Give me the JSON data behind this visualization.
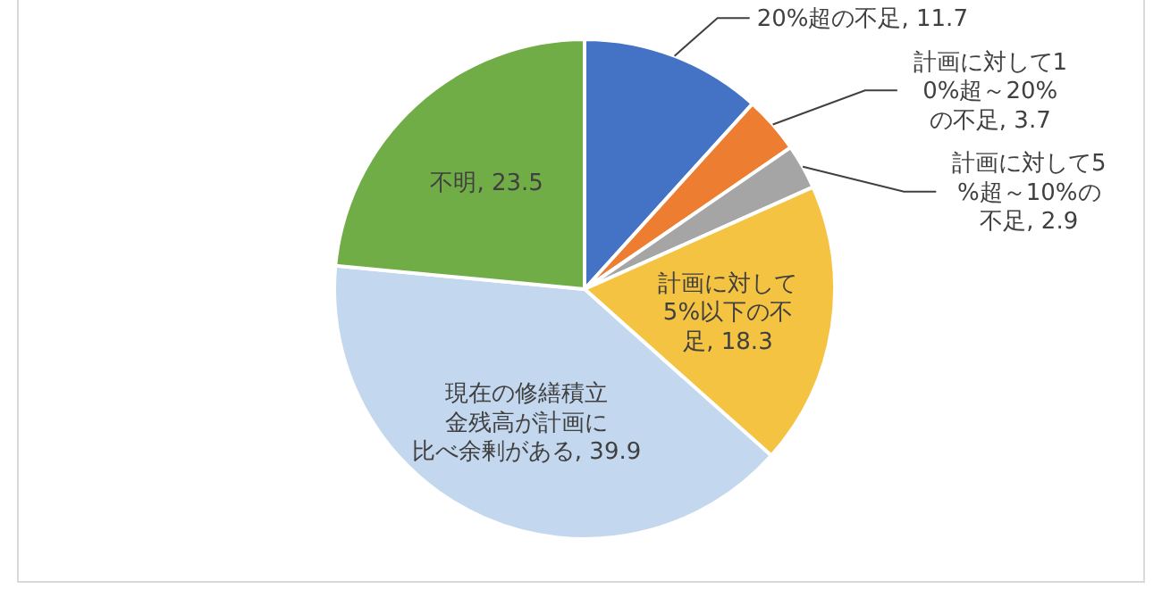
{
  "chart_data": {
    "type": "pie",
    "categories": [
      "20%超の不足",
      "計画に対して10%超～20%の不足",
      "計画に対して5%超～10%の不足",
      "計画に対して5%以下の不足",
      "現在の修繕積立金残高が計画に比べ余剰がある",
      "不明"
    ],
    "values": [
      11.7,
      3.7,
      2.9,
      18.3,
      39.9,
      23.5
    ],
    "colors": [
      "#4472c4",
      "#ed7d31",
      "#a5a5a5",
      "#f5c342",
      "#c3d7ee",
      "#70ad47"
    ],
    "value_labels": [
      ", 11.7",
      ", 3.7",
      ", 2.9",
      ", 18.3",
      ", 39.9",
      ", 23.5"
    ]
  }
}
